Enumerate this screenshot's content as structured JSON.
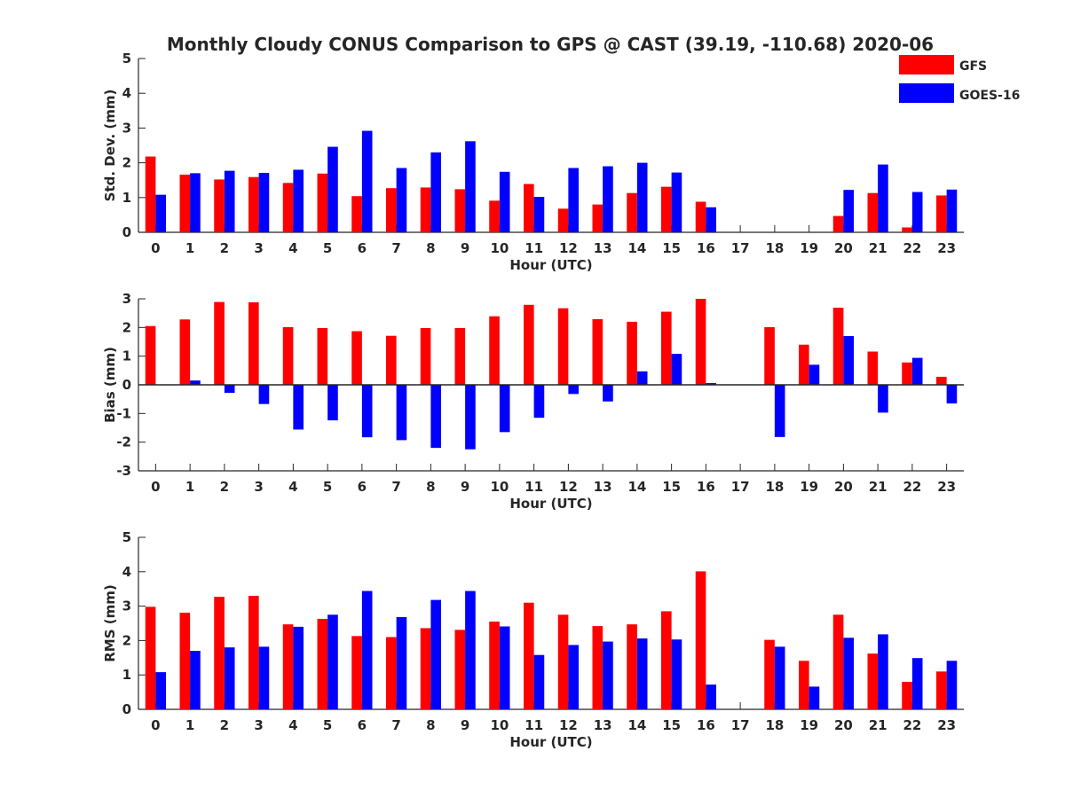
{
  "title": "Monthly Cloudy CONUS Comparison to GPS @ CAST (39.19, -110.68) 2020-06",
  "legend": {
    "placement": "top-right",
    "entries": [
      {
        "label": "GFS",
        "color": "#ff0000"
      },
      {
        "label": "GOES-16",
        "color": "#0000ff"
      }
    ]
  },
  "chart_data": [
    {
      "type": "bar",
      "title": "Monthly Cloudy CONUS Comparison to GPS @ CAST (39.19, -110.68) 2020-06",
      "xlabel": "Hour (UTC)",
      "ylabel": "Std. Dev. (mm)",
      "ylim": [
        0,
        5
      ],
      "yticks": [
        0,
        1,
        2,
        3,
        4,
        5
      ],
      "categories": [
        "0",
        "1",
        "2",
        "3",
        "4",
        "5",
        "6",
        "7",
        "8",
        "9",
        "10",
        "11",
        "12",
        "13",
        "14",
        "15",
        "16",
        "17",
        "18",
        "19",
        "20",
        "21",
        "22",
        "23"
      ],
      "grid": false,
      "series": [
        {
          "name": "GFS",
          "color": "#ff0000",
          "values": [
            2.18,
            1.66,
            1.52,
            1.59,
            1.42,
            1.69,
            1.04,
            1.27,
            1.29,
            1.24,
            0.91,
            1.39,
            0.68,
            0.8,
            1.13,
            1.31,
            0.88,
            null,
            null,
            null,
            0.47,
            1.13,
            0.14,
            1.06
          ]
        },
        {
          "name": "GOES-16",
          "color": "#0000ff",
          "values": [
            1.08,
            1.7,
            1.77,
            1.71,
            1.8,
            2.46,
            2.92,
            1.85,
            2.3,
            2.62,
            1.74,
            1.02,
            1.85,
            1.9,
            2.0,
            1.72,
            0.72,
            null,
            null,
            null,
            1.22,
            1.95,
            1.16,
            1.23
          ]
        }
      ]
    },
    {
      "type": "bar",
      "xlabel": "Hour (UTC)",
      "ylabel": "Bias (mm)",
      "ylim": [
        -3,
        3
      ],
      "yticks": [
        -3,
        -2,
        -1,
        0,
        1,
        2,
        3
      ],
      "categories": [
        "0",
        "1",
        "2",
        "3",
        "4",
        "5",
        "6",
        "7",
        "8",
        "9",
        "10",
        "11",
        "12",
        "13",
        "14",
        "15",
        "16",
        "17",
        "18",
        "19",
        "20",
        "21",
        "22",
        "23"
      ],
      "grid": false,
      "series": [
        {
          "name": "GFS",
          "color": "#ff0000",
          "values": [
            2.05,
            2.28,
            2.89,
            2.88,
            2.01,
            1.98,
            1.87,
            1.71,
            1.98,
            1.98,
            2.39,
            2.79,
            2.67,
            2.29,
            2.2,
            2.55,
            3.0,
            null,
            2.01,
            1.4,
            2.69,
            1.16,
            0.78,
            0.28
          ]
        },
        {
          "name": "GOES-16",
          "color": "#0000ff",
          "values": [
            null,
            0.15,
            -0.28,
            -0.67,
            -1.56,
            -1.24,
            -1.83,
            -1.93,
            -2.2,
            -2.25,
            -1.65,
            -1.15,
            -0.32,
            -0.58,
            0.47,
            1.08,
            0.06,
            null,
            -1.82,
            0.7,
            1.7,
            -0.97,
            0.94,
            -0.65
          ]
        }
      ]
    },
    {
      "type": "bar",
      "xlabel": "Hour (UTC)",
      "ylabel": "RMS (mm)",
      "ylim": [
        0,
        5
      ],
      "yticks": [
        0,
        1,
        2,
        3,
        4,
        5
      ],
      "categories": [
        "0",
        "1",
        "2",
        "3",
        "4",
        "5",
        "6",
        "7",
        "8",
        "9",
        "10",
        "11",
        "12",
        "13",
        "14",
        "15",
        "16",
        "17",
        "18",
        "19",
        "20",
        "21",
        "22",
        "23"
      ],
      "grid": false,
      "series": [
        {
          "name": "GFS",
          "color": "#ff0000",
          "values": [
            2.98,
            2.81,
            3.27,
            3.3,
            2.47,
            2.63,
            2.13,
            2.1,
            2.36,
            2.31,
            2.55,
            3.1,
            2.75,
            2.42,
            2.47,
            2.85,
            4.01,
            null,
            2.02,
            1.41,
            2.75,
            1.62,
            0.8,
            1.1
          ]
        },
        {
          "name": "GOES-16",
          "color": "#0000ff",
          "values": [
            1.08,
            1.7,
            1.8,
            1.82,
            2.4,
            2.75,
            3.44,
            2.68,
            3.18,
            3.44,
            2.41,
            1.58,
            1.87,
            1.97,
            2.06,
            2.03,
            0.72,
            null,
            1.82,
            0.66,
            2.08,
            2.18,
            1.49,
            1.41
          ]
        }
      ]
    }
  ]
}
